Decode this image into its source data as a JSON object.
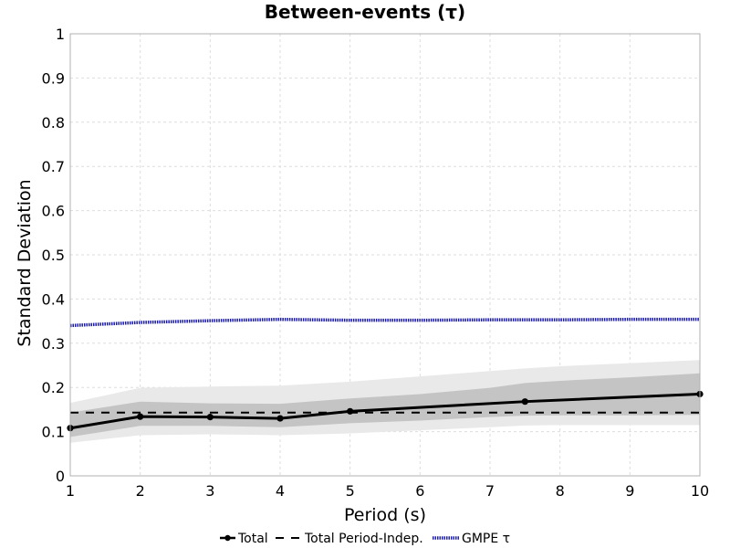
{
  "chart_data": {
    "type": "line",
    "title": "Between-events (τ)",
    "xlabel": "Period (s)",
    "ylabel": "Standard Deviation",
    "xlim": [
      1,
      10
    ],
    "ylim": [
      0,
      1
    ],
    "xticks": [
      "1",
      "2",
      "3",
      "4",
      "5",
      "6",
      "7",
      "8",
      "9",
      "10"
    ],
    "yticks": [
      "0",
      "0.1",
      "0.2",
      "0.3",
      "0.4",
      "0.5",
      "0.6",
      "0.7",
      "0.8",
      "0.9",
      "1"
    ],
    "grid": true,
    "legend_position": "bottom-center",
    "colors": {
      "total": "#000000",
      "period_indep": "#000000",
      "gmpe": "#1a1aa8",
      "band_outer": "#e9e9e9",
      "band_inner": "#c4c4c4",
      "grid": "#dddddd"
    },
    "series": [
      {
        "name": "Total",
        "style": "solid-markers",
        "x": [
          1,
          2,
          3,
          4,
          5,
          7.5,
          10
        ],
        "y": [
          0.108,
          0.134,
          0.133,
          0.13,
          0.146,
          0.168,
          0.185
        ]
      },
      {
        "name": "Total Period-Indep.",
        "style": "dashed",
        "x": [
          1,
          10
        ],
        "y": [
          0.143,
          0.143
        ]
      },
      {
        "name": "GMPE τ",
        "style": "dotted",
        "x": [
          1,
          2,
          3,
          4,
          5,
          6,
          7,
          8,
          9,
          10
        ],
        "y": [
          0.34,
          0.347,
          0.351,
          0.354,
          0.352,
          0.352,
          0.353,
          0.353,
          0.354,
          0.354
        ]
      }
    ],
    "bands": [
      {
        "level": "outer",
        "x": [
          1,
          2,
          3,
          4,
          5,
          6,
          7,
          7.5,
          8,
          9,
          10
        ],
        "lower": [
          0.075,
          0.092,
          0.094,
          0.092,
          0.096,
          0.103,
          0.11,
          0.114,
          0.115,
          0.115,
          0.115
        ],
        "upper": [
          0.165,
          0.199,
          0.202,
          0.204,
          0.213,
          0.225,
          0.237,
          0.243,
          0.248,
          0.255,
          0.262
        ]
      },
      {
        "level": "inner",
        "x": [
          1,
          2,
          3,
          4,
          5,
          6,
          7,
          7.5,
          8,
          9,
          10
        ],
        "lower": [
          0.088,
          0.113,
          0.113,
          0.11,
          0.119,
          0.125,
          0.133,
          0.136,
          0.137,
          0.137,
          0.138
        ],
        "upper": [
          0.143,
          0.168,
          0.164,
          0.163,
          0.175,
          0.185,
          0.199,
          0.21,
          0.215,
          0.223,
          0.232
        ]
      }
    ]
  }
}
